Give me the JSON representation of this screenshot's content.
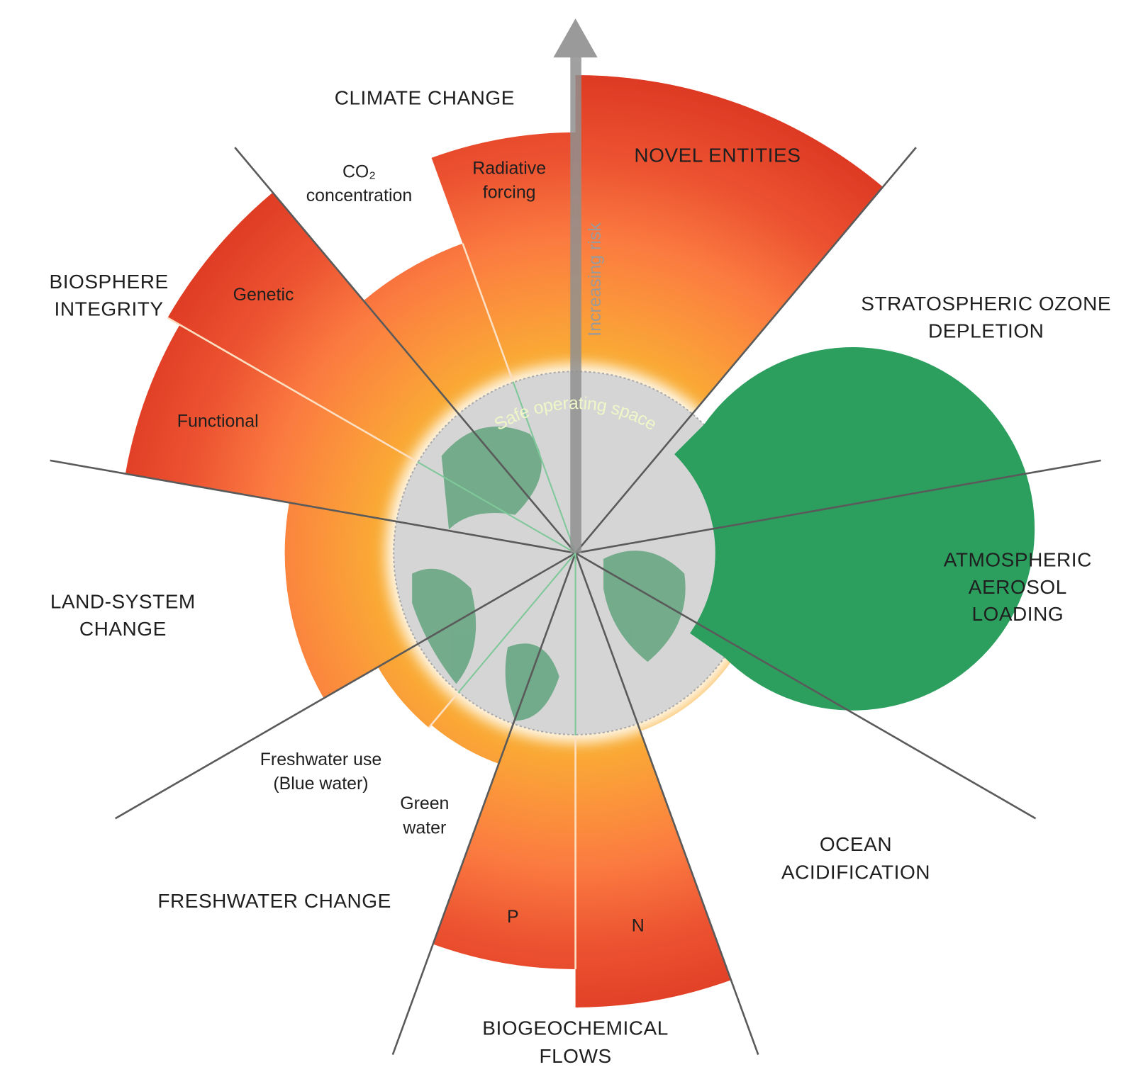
{
  "center_label": "Safe operating space",
  "axis_label": "Increasing risk",
  "boundaries": [
    {
      "title": [
        "CLIMATE CHANGE"
      ],
      "components": [
        [
          "CO₂",
          "concentration"
        ],
        [
          "Radiative",
          "forcing"
        ]
      ]
    },
    {
      "title": [
        "NOVEL ENTITIES"
      ]
    },
    {
      "title": [
        "STRATOSPHERIC OZONE",
        "DEPLETION"
      ]
    },
    {
      "title": [
        "ATMOSPHERIC",
        "AEROSOL",
        "LOADING"
      ]
    },
    {
      "title": [
        "OCEAN",
        "ACIDIFICATION"
      ]
    },
    {
      "title": [
        "BIOGEOCHEMICAL",
        "FLOWS"
      ],
      "components": [
        [
          "P"
        ],
        [
          "N"
        ]
      ]
    },
    {
      "title": [
        "FRESHWATER CHANGE"
      ],
      "components": [
        [
          "Freshwater use",
          "(Blue water)"
        ],
        [
          "Green",
          "water"
        ]
      ]
    },
    {
      "title": [
        "LAND-SYSTEM",
        "CHANGE"
      ]
    },
    {
      "title": [
        "BIOSPHERE",
        "INTEGRITY"
      ],
      "components": [
        [
          "Genetic"
        ],
        [
          "Functional"
        ]
      ]
    }
  ]
}
